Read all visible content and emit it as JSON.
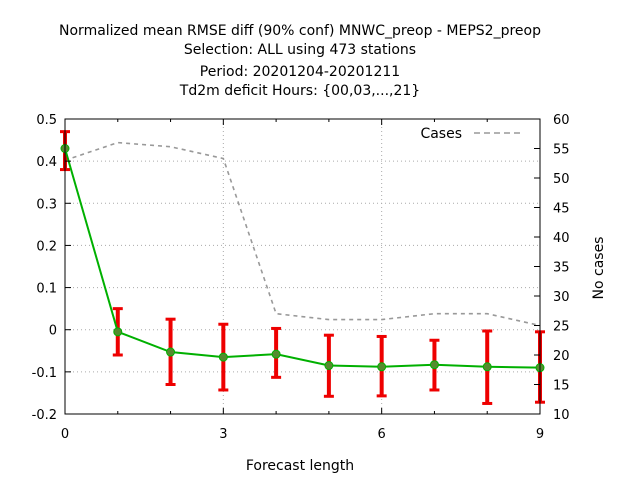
{
  "chart_data": {
    "type": "line",
    "title_lines": [
      "Normalized mean RMSE diff (90% conf) MNWC_preop - MEPS2_preop",
      "Selection: ALL using   473 stations",
      "Period: 20201204-20201211",
      "Td2m deficit   Hours: {00,03,...,21}"
    ],
    "xlabel": "Forecast length",
    "ylabel_right": "No cases",
    "xlim": [
      0,
      9
    ],
    "ylim": [
      -0.2,
      0.5
    ],
    "y2lim": [
      10,
      60
    ],
    "xticks": [
      "0",
      "3",
      "6",
      "9"
    ],
    "yticks": [
      "0.5",
      "0.4",
      "0.3",
      "0.2",
      "0.1",
      "0",
      "-0.1",
      "-0.2"
    ],
    "y2ticks": [
      "60",
      "55",
      "50",
      "45",
      "40",
      "35",
      "30",
      "25",
      "20",
      "15",
      "10"
    ],
    "grid": true,
    "legend_position": "top-right",
    "colors": {
      "diff": "#00b000",
      "marker": "#558b2f",
      "errorbar": "#ee0000",
      "cases": "#999999"
    },
    "series": [
      {
        "values": [
          {
            "x": 0,
            "y": 0.43,
            "lo": 0.38,
            "hi": 0.47
          },
          {
            "x": 1,
            "y": -0.005,
            "lo": -0.06,
            "hi": 0.05
          },
          {
            "x": 2,
            "y": -0.053,
            "lo": -0.13,
            "hi": 0.025
          },
          {
            "x": 3,
            "y": -0.065,
            "lo": -0.143,
            "hi": 0.013
          },
          {
            "x": 4,
            "y": -0.058,
            "lo": -0.113,
            "hi": 0.003
          },
          {
            "x": 5,
            "y": -0.085,
            "lo": -0.158,
            "hi": -0.013
          },
          {
            "x": 6,
            "y": -0.088,
            "lo": -0.157,
            "hi": -0.016
          },
          {
            "x": 7,
            "y": -0.083,
            "lo": -0.143,
            "hi": -0.025
          },
          {
            "x": 8,
            "y": -0.088,
            "lo": -0.175,
            "hi": -0.003
          },
          {
            "x": 9,
            "y": -0.09,
            "lo": -0.172,
            "hi": -0.005
          }
        ]
      },
      {
        "name": "Cases",
        "axis": "right",
        "values": [
          {
            "x": 0,
            "y": 53
          },
          {
            "x": 1,
            "y": 56
          },
          {
            "x": 2,
            "y": 55.3
          },
          {
            "x": 3,
            "y": 53.3
          },
          {
            "x": 4,
            "y": 27
          },
          {
            "x": 5,
            "y": 26
          },
          {
            "x": 6,
            "y": 26
          },
          {
            "x": 7,
            "y": 27
          },
          {
            "x": 8,
            "y": 27
          },
          {
            "x": 9,
            "y": 25
          }
        ]
      }
    ]
  }
}
